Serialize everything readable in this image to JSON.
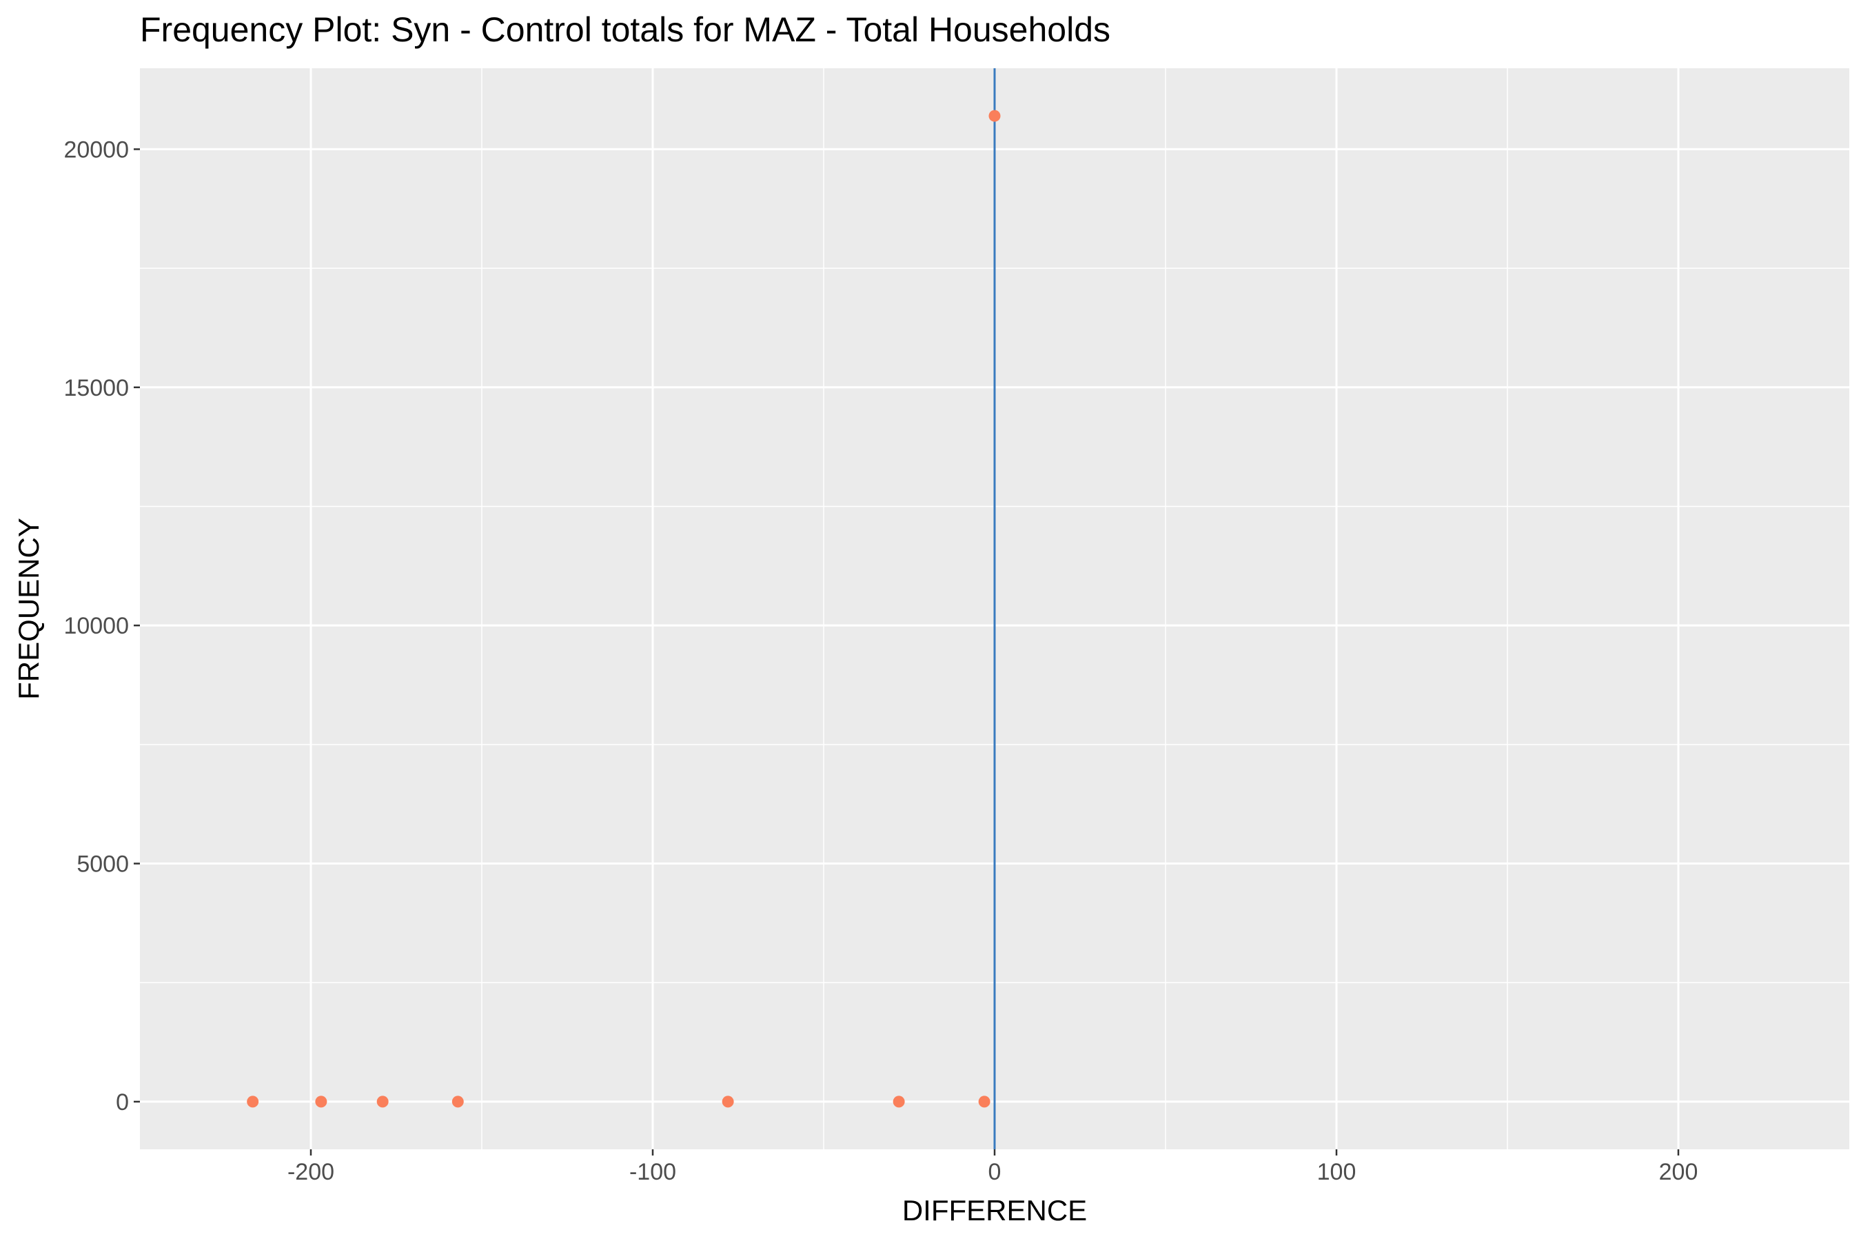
{
  "chart_data": {
    "type": "scatter",
    "title": "Frequency Plot: Syn - Control totals for MAZ - Total Households",
    "xlabel": "DIFFERENCE",
    "ylabel": "FREQUENCY",
    "xlim": [
      -250,
      250
    ],
    "ylim": [
      -1000,
      21700
    ],
    "x_ticks": [
      -200,
      -100,
      0,
      100,
      200
    ],
    "x_tick_labels": [
      "-200",
      "-100",
      "0",
      "100",
      "200"
    ],
    "y_ticks": [
      0,
      5000,
      10000,
      15000,
      20000
    ],
    "y_tick_labels": [
      "0",
      "5000",
      "10000",
      "15000",
      "20000"
    ],
    "grid": true,
    "legend": "none",
    "reference_line": {
      "axis": "x",
      "value": 0,
      "color": "#3a7bbf"
    },
    "points": [
      {
        "x": -217,
        "y": 1
      },
      {
        "x": -197,
        "y": 1
      },
      {
        "x": -179,
        "y": 1
      },
      {
        "x": -157,
        "y": 1
      },
      {
        "x": -78,
        "y": 1
      },
      {
        "x": -28,
        "y": 1
      },
      {
        "x": -3,
        "y": 1
      },
      {
        "x": 0,
        "y": 20700
      }
    ],
    "colors": {
      "points": "#fa7f5a",
      "panel_background": "#ebebeb",
      "grid": "#ffffff"
    }
  }
}
